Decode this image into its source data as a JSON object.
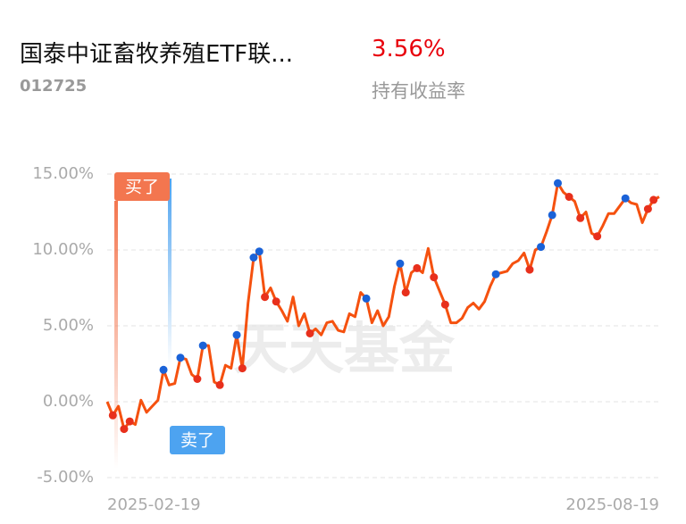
{
  "header": {
    "title": "国泰中证畜牧养殖ETF联...",
    "code": "012725",
    "return": "3.56%",
    "return_label": "持有收益率"
  },
  "chart_data": {
    "type": "line",
    "watermark": "天天基金",
    "annotations": [
      "买了",
      "卖了"
    ],
    "categories": [
      "2025-02-19",
      null,
      null,
      null,
      null,
      null,
      null,
      null,
      null,
      null,
      null,
      null,
      null,
      null,
      null,
      null,
      null,
      null,
      null,
      null,
      null,
      null,
      null,
      null,
      null,
      null,
      null,
      null,
      null,
      null,
      null,
      null,
      null,
      null,
      null,
      null,
      null,
      null,
      null,
      null,
      null,
      null,
      null,
      null,
      null,
      null,
      null,
      null,
      null,
      null,
      null,
      null,
      null,
      null,
      null,
      null,
      null,
      null,
      null,
      null,
      null,
      null,
      null,
      null,
      null,
      null,
      null,
      null,
      null,
      null,
      null,
      null,
      null,
      null,
      null,
      null,
      null,
      null,
      null,
      null,
      null,
      null,
      null,
      null,
      null,
      null,
      null,
      null,
      null,
      null,
      null,
      null,
      null,
      null,
      null,
      null,
      null,
      null,
      "2025-08-19"
    ],
    "series": [
      {
        "color": "#f5510f",
        "values": [
          0,
          -0.9,
          -0.3,
          -1.8,
          -1.3,
          -1.5,
          0.1,
          -0.7,
          -0.3,
          0.1,
          2.1,
          1.1,
          1.2,
          2.9,
          2.8,
          1.8,
          1.5,
          3.7,
          3.7,
          1.3,
          1.1,
          2.4,
          2.2,
          4.4,
          2.2,
          6.5,
          9.5,
          9.9,
          6.9,
          7.5,
          6.6,
          6.0,
          5.3,
          6.9,
          5.0,
          5.8,
          4.5,
          4.8,
          4.4,
          5.2,
          5.3,
          4.7,
          4.6,
          5.8,
          5.6,
          7.2,
          6.8,
          5.2,
          6.0,
          5.0,
          5.6,
          7.6,
          9.1,
          7.2,
          8.5,
          8.8,
          8.5,
          10.1,
          8.2,
          7.3,
          6.4,
          5.2,
          5.2,
          5.5,
          6.2,
          6.5,
          6.1,
          6.6,
          7.6,
          8.4,
          8.5,
          8.6,
          9.1,
          9.3,
          9.8,
          8.7,
          10.0,
          10.2,
          11.2,
          12.3,
          14.4,
          13.8,
          13.5,
          13.2,
          12.1,
          12.5,
          11.1,
          10.9,
          11.6,
          12.4,
          12.4,
          12.9,
          13.4,
          13.1,
          13.0,
          11.8,
          12.7,
          13.3,
          13.5
        ]
      },
      {
        "color": "#e8301c",
        "marker": "dot",
        "values": [
          null,
          -0.9,
          null,
          -1.8,
          -1.3,
          null,
          null,
          null,
          null,
          null,
          null,
          null,
          null,
          null,
          null,
          null,
          1.5,
          null,
          null,
          null,
          1.1,
          null,
          null,
          null,
          2.2,
          null,
          null,
          null,
          6.9,
          null,
          6.6,
          null,
          null,
          null,
          null,
          null,
          4.5,
          null,
          null,
          null,
          null,
          null,
          null,
          null,
          null,
          null,
          null,
          null,
          null,
          null,
          null,
          null,
          null,
          7.2,
          null,
          8.8,
          null,
          null,
          8.2,
          null,
          6.4,
          null,
          null,
          null,
          null,
          null,
          null,
          null,
          null,
          null,
          null,
          null,
          null,
          null,
          null,
          8.7,
          null,
          null,
          null,
          null,
          null,
          null,
          13.5,
          null,
          12.1,
          null,
          null,
          10.9,
          null,
          null,
          null,
          null,
          null,
          null,
          null,
          null,
          12.7,
          13.3,
          null
        ]
      },
      {
        "color": "#1a62d8",
        "marker": "dot",
        "values": [
          null,
          null,
          null,
          null,
          null,
          null,
          null,
          null,
          null,
          null,
          2.1,
          null,
          null,
          2.9,
          null,
          null,
          null,
          3.7,
          null,
          null,
          null,
          null,
          null,
          4.4,
          null,
          null,
          9.5,
          9.9,
          null,
          null,
          null,
          null,
          null,
          null,
          null,
          null,
          null,
          null,
          null,
          null,
          null,
          null,
          null,
          null,
          null,
          null,
          6.8,
          null,
          null,
          null,
          null,
          null,
          9.1,
          null,
          null,
          null,
          null,
          null,
          null,
          null,
          null,
          null,
          null,
          null,
          null,
          null,
          null,
          null,
          null,
          8.4,
          null,
          null,
          null,
          null,
          null,
          null,
          null,
          10.2,
          null,
          12.3,
          14.4,
          null,
          null,
          null,
          null,
          null,
          null,
          null,
          null,
          null,
          null,
          null,
          13.4,
          null,
          null,
          null,
          null,
          null,
          null
        ]
      }
    ],
    "ylim": [
      -5,
      15
    ],
    "yticks": [
      {
        "value": 15,
        "label": "15.00%"
      },
      {
        "value": 10,
        "label": "10.00%"
      },
      {
        "value": 5,
        "label": "5.00%"
      },
      {
        "value": 0,
        "label": "0.00%"
      },
      {
        "value": -5,
        "label": "-5.00%"
      }
    ],
    "grid": true
  }
}
